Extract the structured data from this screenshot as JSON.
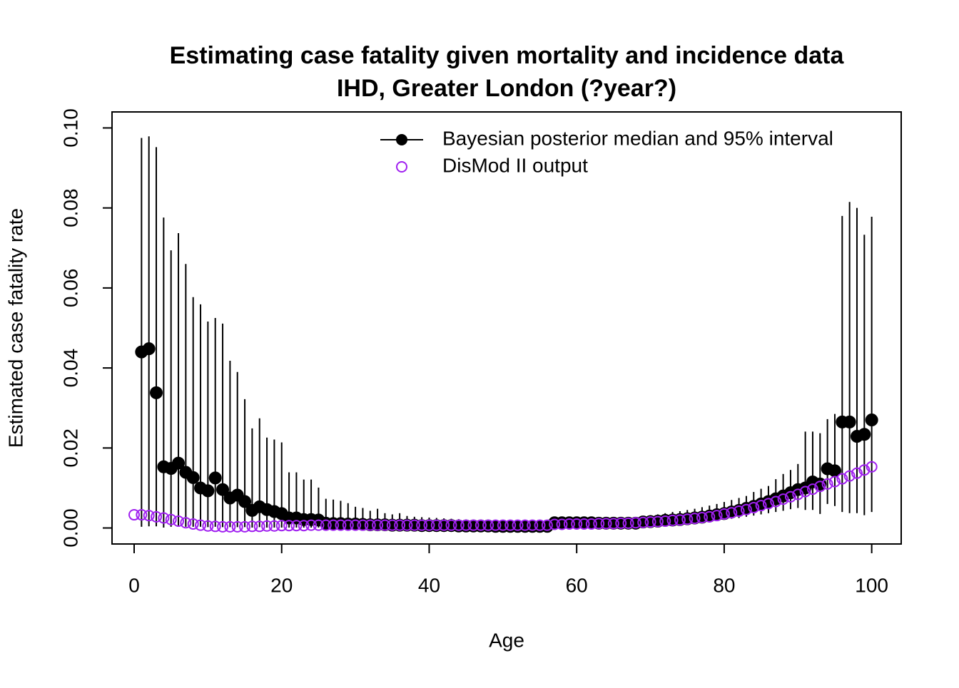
{
  "chart_data": {
    "type": "scatter",
    "title": "Estimating case fatality given mortality and incidence data",
    "subtitle": "IHD, Greater London (?year?)",
    "x_label": "Age",
    "y_label": "Estimated case fatality rate",
    "xlim": [
      -3,
      104
    ],
    "ylim": [
      -0.004,
      0.104
    ],
    "xticks": [
      0,
      20,
      40,
      60,
      80,
      100
    ],
    "yticks": [
      {
        "value": 0,
        "label": "0.00"
      },
      0.02,
      0.04,
      0.06,
      0.08,
      {
        "value": 0.1,
        "label": "0.10"
      }
    ],
    "legend": "topright",
    "series": [
      {
        "name": "Bayesian posterior median and 95% interval",
        "color": "#000000",
        "x": [
          1,
          2,
          3,
          4,
          5,
          6,
          7,
          8,
          9,
          10,
          11,
          12,
          13,
          14,
          15,
          16,
          17,
          18,
          19,
          20,
          21,
          22,
          23,
          24,
          25,
          26,
          27,
          28,
          29,
          30,
          31,
          32,
          33,
          34,
          35,
          36,
          37,
          38,
          39,
          40,
          41,
          42,
          43,
          44,
          45,
          46,
          47,
          48,
          49,
          50,
          51,
          52,
          53,
          54,
          55,
          56,
          57,
          58,
          59,
          60,
          61,
          62,
          63,
          64,
          65,
          66,
          67,
          68,
          69,
          70,
          71,
          72,
          73,
          74,
          75,
          76,
          77,
          78,
          79,
          80,
          81,
          82,
          83,
          84,
          85,
          86,
          87,
          88,
          89,
          90,
          91,
          92,
          93,
          94,
          95,
          96,
          97,
          98,
          99,
          100
        ],
        "values": [
          0.044,
          0.0448,
          0.0338,
          0.0153,
          0.0149,
          0.0162,
          0.0139,
          0.0126,
          0.01,
          0.0093,
          0.0125,
          0.0096,
          0.0075,
          0.0082,
          0.0066,
          0.0044,
          0.0053,
          0.0046,
          0.0041,
          0.0036,
          0.0025,
          0.0025,
          0.0021,
          0.0021,
          0.002,
          0.0012,
          0.0011,
          0.0011,
          0.001,
          0.001,
          0.0009,
          0.0008,
          0.0008,
          0.0008,
          0.0007,
          0.0007,
          0.0007,
          0.0007,
          0.0006,
          0.0006,
          0.0006,
          0.0006,
          0.0006,
          0.0005,
          0.0005,
          0.0005,
          0.0005,
          0.0005,
          0.0004,
          0.0004,
          0.0004,
          0.0004,
          0.0004,
          0.0004,
          0.0004,
          0.0004,
          0.0013,
          0.0013,
          0.0013,
          0.0013,
          0.0013,
          0.0013,
          0.0012,
          0.0012,
          0.0012,
          0.0012,
          0.0012,
          0.0012,
          0.0015,
          0.0016,
          0.0017,
          0.0019,
          0.002,
          0.0021,
          0.0023,
          0.0025,
          0.0027,
          0.003,
          0.0033,
          0.0036,
          0.004,
          0.0044,
          0.0049,
          0.0054,
          0.006,
          0.0066,
          0.0073,
          0.008,
          0.0088,
          0.0096,
          0.01,
          0.0115,
          0.011,
          0.0148,
          0.0143,
          0.0265,
          0.0265,
          0.0229,
          0.0234,
          0.027
        ],
        "lower": [
          0.0003,
          0.0004,
          0.0004,
          0.0001,
          0.0003,
          0.0004,
          0.0003,
          0.0003,
          0.0003,
          0.0002,
          0.0003,
          0.0002,
          0.0002,
          0.0002,
          0.0002,
          0.0001,
          0.0002,
          0.0001,
          0.0001,
          0.0001,
          0.0001,
          0.0001,
          0.0001,
          0.0001,
          0.0001,
          0.0001,
          0.0001,
          0.0001,
          0.0001,
          0.0001,
          0.0001,
          0.0001,
          0.0001,
          0.0001,
          0.0001,
          0.0001,
          0.0001,
          0.0001,
          0.0001,
          0.0001,
          0.0001,
          0.0001,
          0.0001,
          0.0001,
          0.0001,
          0.0001,
          0.0001,
          0.0001,
          0.0001,
          0.0001,
          0.0001,
          0.0001,
          0.0001,
          0.0001,
          0.0001,
          0.0001,
          0.0005,
          0.0005,
          0.0005,
          0.0005,
          0.0005,
          0.0005,
          0.0005,
          0.0005,
          0.0005,
          0.0005,
          0.0005,
          0.0005,
          0.0007,
          0.0008,
          0.0009,
          0.001,
          0.0011,
          0.0012,
          0.0013,
          0.0014,
          0.0015,
          0.0017,
          0.0019,
          0.0021,
          0.0023,
          0.0025,
          0.0028,
          0.0031,
          0.0034,
          0.0037,
          0.004,
          0.0043,
          0.0047,
          0.005,
          0.0045,
          0.0045,
          0.0035,
          0.006,
          0.0055,
          0.004,
          0.0037,
          0.0037,
          0.0032,
          0.004
        ],
        "upper": [
          0.0975,
          0.0979,
          0.0952,
          0.0776,
          0.0694,
          0.0737,
          0.066,
          0.0577,
          0.0559,
          0.0516,
          0.0525,
          0.0511,
          0.0418,
          0.039,
          0.0322,
          0.0249,
          0.0274,
          0.0226,
          0.0221,
          0.0214,
          0.0139,
          0.0139,
          0.0121,
          0.0121,
          0.0101,
          0.0073,
          0.0071,
          0.0068,
          0.0062,
          0.0053,
          0.005,
          0.0043,
          0.0048,
          0.0037,
          0.0034,
          0.0037,
          0.003,
          0.0028,
          0.0027,
          0.0026,
          0.0025,
          0.0024,
          0.0023,
          0.0022,
          0.0021,
          0.002,
          0.002,
          0.0019,
          0.0018,
          0.0018,
          0.0017,
          0.0017,
          0.0016,
          0.0016,
          0.0016,
          0.0015,
          0.0026,
          0.0026,
          0.0025,
          0.0025,
          0.0025,
          0.0024,
          0.0024,
          0.0024,
          0.0024,
          0.0024,
          0.0024,
          0.0025,
          0.003,
          0.0032,
          0.0034,
          0.0037,
          0.004,
          0.0042,
          0.0045,
          0.0048,
          0.0052,
          0.0056,
          0.006,
          0.0065,
          0.007,
          0.0075,
          0.008,
          0.009,
          0.0098,
          0.0105,
          0.0122,
          0.0135,
          0.0145,
          0.016,
          0.0241,
          0.0241,
          0.0237,
          0.0272,
          0.0285,
          0.078,
          0.0815,
          0.08,
          0.0733,
          0.0778
        ]
      },
      {
        "name": "DisMod II output",
        "color": "#a020f0",
        "x": [
          0,
          1,
          2,
          3,
          4,
          5,
          6,
          7,
          8,
          9,
          10,
          11,
          12,
          13,
          14,
          15,
          16,
          17,
          18,
          19,
          20,
          21,
          22,
          23,
          24,
          25,
          26,
          27,
          28,
          29,
          30,
          31,
          32,
          33,
          34,
          35,
          36,
          37,
          38,
          39,
          40,
          41,
          42,
          43,
          44,
          45,
          46,
          47,
          48,
          49,
          50,
          51,
          52,
          53,
          54,
          55,
          56,
          57,
          58,
          59,
          60,
          61,
          62,
          63,
          64,
          65,
          66,
          67,
          68,
          69,
          70,
          71,
          72,
          73,
          74,
          75,
          76,
          77,
          78,
          79,
          80,
          81,
          82,
          83,
          84,
          85,
          86,
          87,
          88,
          89,
          90,
          91,
          92,
          93,
          94,
          95,
          96,
          97,
          98,
          99,
          100
        ],
        "values": [
          0.0033,
          0.0033,
          0.0031,
          0.0028,
          0.0025,
          0.0021,
          0.0017,
          0.0013,
          0.001,
          0.0007,
          0.0005,
          0.0004,
          0.0003,
          0.0003,
          0.0003,
          0.0003,
          0.0004,
          0.0004,
          0.0005,
          0.0005,
          0.0006,
          0.0006,
          0.0006,
          0.0006,
          0.0007,
          0.0007,
          0.0007,
          0.0007,
          0.0007,
          0.0007,
          0.0007,
          0.0007,
          0.0007,
          0.0007,
          0.0007,
          0.0007,
          0.0007,
          0.0007,
          0.0007,
          0.0007,
          0.0007,
          0.0007,
          0.0007,
          0.0007,
          0.0007,
          0.0007,
          0.0007,
          0.0007,
          0.0007,
          0.0007,
          0.0007,
          0.0007,
          0.0007,
          0.0007,
          0.0007,
          0.0007,
          0.0007,
          0.0009,
          0.0009,
          0.001,
          0.001,
          0.001,
          0.001,
          0.0011,
          0.0011,
          0.0011,
          0.0012,
          0.0012,
          0.0013,
          0.0014,
          0.0015,
          0.0016,
          0.0017,
          0.0019,
          0.002,
          0.0022,
          0.0024,
          0.0026,
          0.0028,
          0.0031,
          0.0035,
          0.0038,
          0.0042,
          0.0046,
          0.0051,
          0.0056,
          0.0061,
          0.0066,
          0.0072,
          0.0078,
          0.0084,
          0.0091,
          0.0097,
          0.0104,
          0.011,
          0.0116,
          0.0123,
          0.013,
          0.0137,
          0.0145,
          0.0153
        ]
      }
    ]
  }
}
